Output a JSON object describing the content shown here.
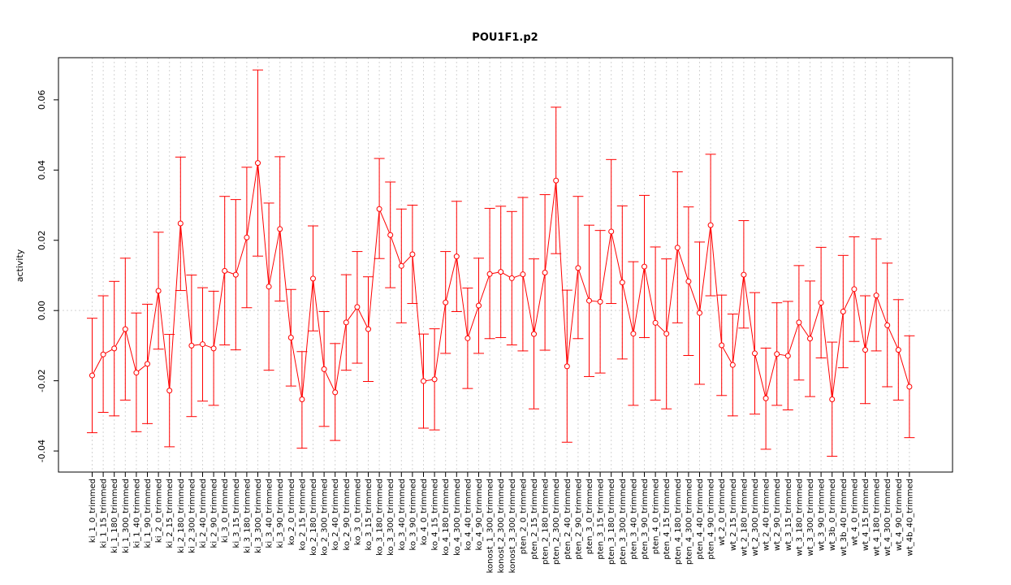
{
  "chart_data": {
    "type": "line",
    "title": "POU1F1.p2",
    "xlabel": "",
    "ylabel": "activity",
    "ylim": [
      -0.046,
      0.072
    ],
    "yticks": [
      -0.04,
      -0.02,
      0.0,
      0.02,
      0.04,
      0.06
    ],
    "ytick_labels": [
      "-0.04",
      "-0.02",
      "0.00",
      "0.02",
      "0.04",
      "0.06"
    ],
    "grid": true,
    "series_color": "#ff0000",
    "grid_color": "#d3d3d3",
    "categories": [
      "ki_1_0_trimmed",
      "ki_1_15_trimmed",
      "ki_1_180_trimmed",
      "ki_1_300_trimmed",
      "ki_1_40_trimmed",
      "ki_1_90_trimmed",
      "ki_2_0_trimmed",
      "ki_2_15_trimmed",
      "ki_2_180_trimmed",
      "ki_2_300_trimmed",
      "ki_2_40_trimmed",
      "ki_2_90_trimmed",
      "ki_3_0_trimmed",
      "ki_3_15_trimmed",
      "ki_3_180_trimmed",
      "ki_3_300_trimmed",
      "ki_3_40_trimmed",
      "ki_3_90_trimmed",
      "ko_2_0_trimmed",
      "ko_2_15_trimmed",
      "ko_2_180_trimmed",
      "ko_2_300_trimmed",
      "ko_2_40_trimmed",
      "ko_2_90_trimmed",
      "ko_3_0_trimmed",
      "ko_3_15_trimmed",
      "ko_3_180_trimmed",
      "ko_3_300_trimmed",
      "ko_3_40_trimmed",
      "ko_3_90_trimmed",
      "ko_4_0_trimmed",
      "ko_4_15_trimmed",
      "ko_4_180_trimmed",
      "ko_4_300_trimmed",
      "ko_4_40_trimmed",
      "ko_4_90_trimmed",
      "konost_1_300_trimmed",
      "konost_2_300_trimmed",
      "konost_3_300_trimmed",
      "pten_2_0_trimmed",
      "pten_2_15_trimmed",
      "pten_2_180_trimmed",
      "pten_2_300_trimmed",
      "pten_2_40_trimmed",
      "pten_2_90_trimmed",
      "pten_3_0_trimmed",
      "pten_3_15_trimmed",
      "pten_3_180_trimmed",
      "pten_3_300_trimmed",
      "pten_3_40_trimmed",
      "pten_3_90_trimmed",
      "pten_4_0_trimmed",
      "pten_4_15_trimmed",
      "pten_4_180_trimmed",
      "pten_4_300_trimmed",
      "pten_4_40_trimmed",
      "pten_4_90_trimmed",
      "wt_2_0_trimmed",
      "wt_2_15_trimmed",
      "wt_2_180_trimmed",
      "wt_2_300_trimmed",
      "wt_2_40_trimmed",
      "wt_2_90_trimmed",
      "wt_3_15_trimmed",
      "wt_3_180_trimmed",
      "wt_3_300_trimmed",
      "wt_3_90_trimmed",
      "wt_3b_0_trimmed",
      "wt_3b_40_trimmed",
      "wt_4_0_trimmed",
      "wt_4_15_trimmed",
      "wt_4_180_trimmed",
      "wt_4_300_trimmed",
      "wt_4_90_trimmed",
      "wt_4b_40_trimmed"
    ],
    "series": [
      {
        "values": [
          -0.0185,
          -0.0125,
          -0.0108,
          -0.0053,
          -0.0177,
          -0.0152,
          0.0056,
          -0.0228,
          0.0248,
          -0.01,
          -0.0096,
          -0.0108,
          0.0113,
          0.0102,
          0.0208,
          0.042,
          0.0068,
          0.0232,
          -0.0077,
          -0.0253,
          0.0091,
          -0.0167,
          -0.0233,
          -0.0034,
          0.001,
          -0.0053,
          0.0289,
          0.0215,
          0.0127,
          0.016,
          -0.0201,
          -0.0196,
          0.0023,
          0.0154,
          -0.0079,
          0.0014,
          0.0104,
          0.011,
          0.0092,
          0.0103,
          -0.0067,
          0.0108,
          0.037,
          -0.0159,
          0.0121,
          0.0028,
          0.0025,
          0.0225,
          0.008,
          -0.0066,
          0.0125,
          -0.0035,
          -0.0066,
          0.0179,
          0.0083,
          -0.0007,
          0.0243,
          -0.0099,
          -0.0155,
          0.0102,
          -0.0122,
          -0.025,
          -0.0124,
          -0.0129,
          -0.0034,
          -0.008,
          0.0022,
          -0.0253,
          -0.0003,
          0.0061,
          -0.0112,
          0.0043,
          -0.0042,
          -0.0112,
          -0.0217
        ],
        "lower": [
          -0.0348,
          -0.029,
          -0.03,
          -0.0255,
          -0.0345,
          -0.0322,
          -0.011,
          -0.0388,
          0.0057,
          -0.0302,
          -0.0258,
          -0.027,
          -0.0098,
          -0.0112,
          0.0008,
          0.0155,
          -0.017,
          0.0027,
          -0.0215,
          -0.0392,
          -0.0058,
          -0.033,
          -0.037,
          -0.017,
          -0.015,
          -0.0202,
          0.0148,
          0.0065,
          -0.0035,
          0.002,
          -0.0335,
          -0.034,
          -0.0122,
          -0.0003,
          -0.0222,
          -0.0122,
          -0.008,
          -0.0077,
          -0.0098,
          -0.0115,
          -0.028,
          -0.0113,
          0.0162,
          -0.0375,
          -0.008,
          -0.0188,
          -0.0178,
          0.002,
          -0.0138,
          -0.027,
          -0.0077,
          -0.0255,
          -0.028,
          -0.0035,
          -0.0128,
          -0.021,
          0.0042,
          -0.0242,
          -0.03,
          -0.005,
          -0.0295,
          -0.0395,
          -0.027,
          -0.0283,
          -0.0198,
          -0.0245,
          -0.0135,
          -0.0415,
          -0.0163,
          -0.0088,
          -0.0265,
          -0.0115,
          -0.0217,
          -0.0255,
          -0.0362
        ],
        "upper": [
          -0.0022,
          0.0042,
          0.0083,
          0.0149,
          -0.0007,
          0.0018,
          0.0223,
          -0.0068,
          0.0437,
          0.0101,
          0.0065,
          0.0055,
          0.0325,
          0.0316,
          0.0408,
          0.0685,
          0.0306,
          0.0438,
          0.006,
          -0.0117,
          0.0241,
          -0.0003,
          -0.0094,
          0.0102,
          0.0168,
          0.0096,
          0.0433,
          0.0366,
          0.0289,
          0.03,
          -0.0067,
          -0.0052,
          0.0168,
          0.0311,
          0.0064,
          0.0149,
          0.0291,
          0.0297,
          0.0282,
          0.0322,
          0.0147,
          0.033,
          0.0579,
          0.0058,
          0.0325,
          0.0243,
          0.0228,
          0.043,
          0.0298,
          0.0139,
          0.0328,
          0.0181,
          0.0147,
          0.0395,
          0.0295,
          0.0195,
          0.0445,
          0.0044,
          -0.001,
          0.0256,
          0.0051,
          -0.0107,
          0.0022,
          0.0026,
          0.0128,
          0.0084,
          0.018,
          -0.009,
          0.0157,
          0.021,
          0.0042,
          0.0204,
          0.0135,
          0.0031,
          -0.0072
        ]
      }
    ]
  }
}
